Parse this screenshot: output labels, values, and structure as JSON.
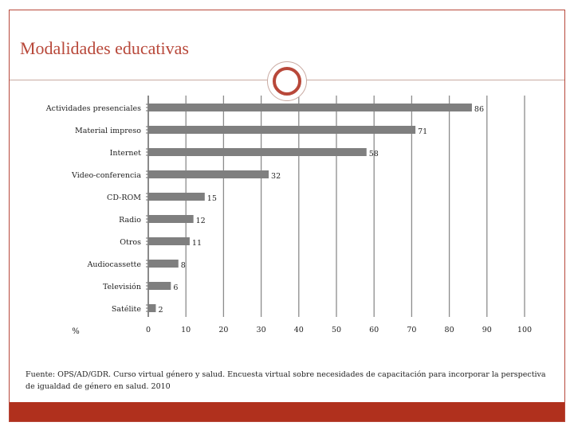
{
  "slide": {
    "title": "Modalidades educativas",
    "source": "Fuente: OPS/AD/GDR. Curso virtual género y salud. Encuesta virtual sobre necesidades de capacitación para incorporar la perspectiva de igualdad de género en salud. 2010",
    "accent_color": "#b8483a",
    "bottom_band_color": "#b0301d"
  },
  "chart_data": {
    "type": "bar",
    "orientation": "horizontal",
    "title": "",
    "xlabel": "%",
    "ylabel": "",
    "categories": [
      "Actividades presenciales",
      "Material impreso",
      "Internet",
      "Video-conferencia",
      "CD-ROM",
      "Radio",
      "Otros",
      "Audiocassette",
      "Televisión",
      "Satélite"
    ],
    "values": [
      86,
      71,
      58,
      32,
      15,
      12,
      11,
      8,
      6,
      2
    ],
    "xlim": [
      0,
      100
    ],
    "xticks": [
      0,
      10,
      20,
      30,
      40,
      50,
      60,
      70,
      80,
      90,
      100
    ],
    "grid": true,
    "bar_color": "#7f7f7f",
    "grid_color": "#8c8c8c",
    "legend": "none"
  }
}
